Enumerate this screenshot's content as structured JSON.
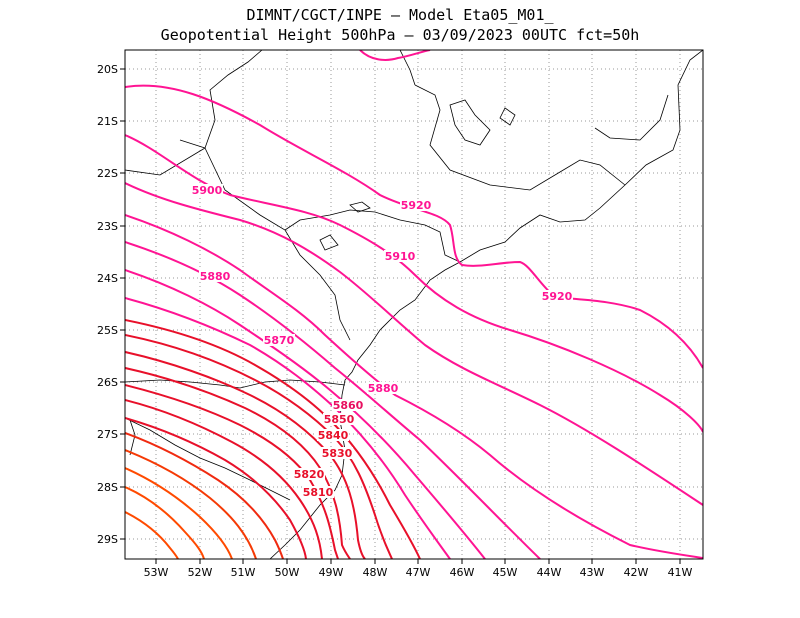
{
  "header": {
    "line1": "DIMNT/CGCT/INPE  –  Model Eta05_M01_",
    "line2": "Geopotential Height 500hPa  –   03/09/2023 00UTC fct=50h"
  },
  "lat_labels": [
    "20S",
    "21S",
    "22S",
    "23S",
    "24S",
    "25S",
    "26S",
    "27S",
    "28S",
    "29S"
  ],
  "lon_labels": [
    "53W",
    "52W",
    "51W",
    "50W",
    "49W",
    "48W",
    "47W",
    "46W",
    "45W",
    "44W",
    "43W",
    "42W",
    "41W"
  ],
  "contour_labels": [
    "5900",
    "5920",
    "5910",
    "5880",
    "5920",
    "5870",
    "5880",
    "5860",
    "5850",
    "5840",
    "5830",
    "5820",
    "5810"
  ],
  "colors": {
    "magenta": "#ff1493",
    "red": "#e8102a",
    "orange": "#ff4a00",
    "coast": "#000000",
    "grid": "#9a9a9a"
  }
}
